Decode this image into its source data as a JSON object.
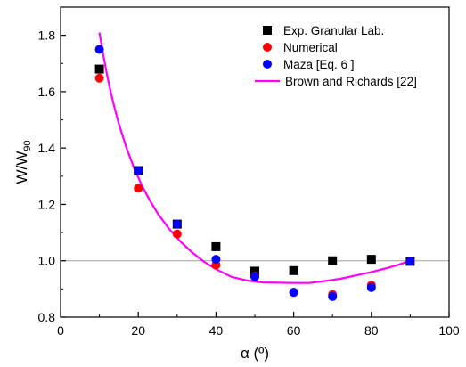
{
  "chart_data": {
    "type": "scatter",
    "xlabel": "α (º)",
    "ylabel_main": "W/W",
    "ylabel_sub": "90",
    "xlim": [
      0,
      100
    ],
    "ylim": [
      0.8,
      1.9
    ],
    "xticks": [
      0,
      20,
      40,
      60,
      80,
      100
    ],
    "yticks": [
      0.8,
      1.0,
      1.2,
      1.4,
      1.6,
      1.8
    ],
    "xtick_labels": [
      "0",
      "20",
      "40",
      "60",
      "80",
      "100"
    ],
    "ytick_labels": [
      "0.8",
      "1.0",
      "1.2",
      "1.4",
      "1.6",
      "1.8"
    ],
    "reference_line_y": 1.0,
    "legend_position": "top-right",
    "series": [
      {
        "name": "Exp. Granular Lab.",
        "marker": "square",
        "color": "#000000",
        "x": [
          10,
          20,
          30,
          40,
          50,
          60,
          70,
          80,
          90
        ],
        "y": [
          1.68,
          1.32,
          1.13,
          1.05,
          0.963,
          0.965,
          1.0,
          1.005,
          0.998
        ]
      },
      {
        "name": "Numerical",
        "marker": "circle",
        "color": "#ff0000",
        "x": [
          10,
          20,
          30,
          40,
          50,
          60,
          70,
          80,
          90
        ],
        "y": [
          1.648,
          1.257,
          1.095,
          0.985,
          0.945,
          0.888,
          0.88,
          0.913,
          0.998
        ]
      },
      {
        "name": "Maza [Eq. 6 ]",
        "marker": "circle",
        "color": "#0000ff",
        "x": [
          10,
          20,
          30,
          40,
          50,
          60,
          70,
          80,
          90
        ],
        "y": [
          1.75,
          1.32,
          1.13,
          1.005,
          0.943,
          0.888,
          0.873,
          0.905,
          0.998
        ]
      },
      {
        "name": "Brown and Richards [22]",
        "marker": "line",
        "color": "#ff00ff",
        "x": [
          10,
          11,
          12,
          13,
          14,
          15,
          17,
          19,
          21,
          23,
          25,
          28,
          31,
          34,
          37,
          40,
          44,
          48,
          52,
          56,
          60,
          64,
          68,
          72,
          76,
          80,
          84,
          87,
          90
        ],
        "y": [
          1.81,
          1.729,
          1.657,
          1.593,
          1.537,
          1.486,
          1.399,
          1.326,
          1.265,
          1.213,
          1.168,
          1.112,
          1.066,
          1.028,
          0.996,
          0.97,
          0.943,
          0.93,
          0.923,
          0.922,
          0.921,
          0.921,
          0.928,
          0.936,
          0.948,
          0.96,
          0.974,
          0.986,
          1.0
        ]
      }
    ]
  }
}
